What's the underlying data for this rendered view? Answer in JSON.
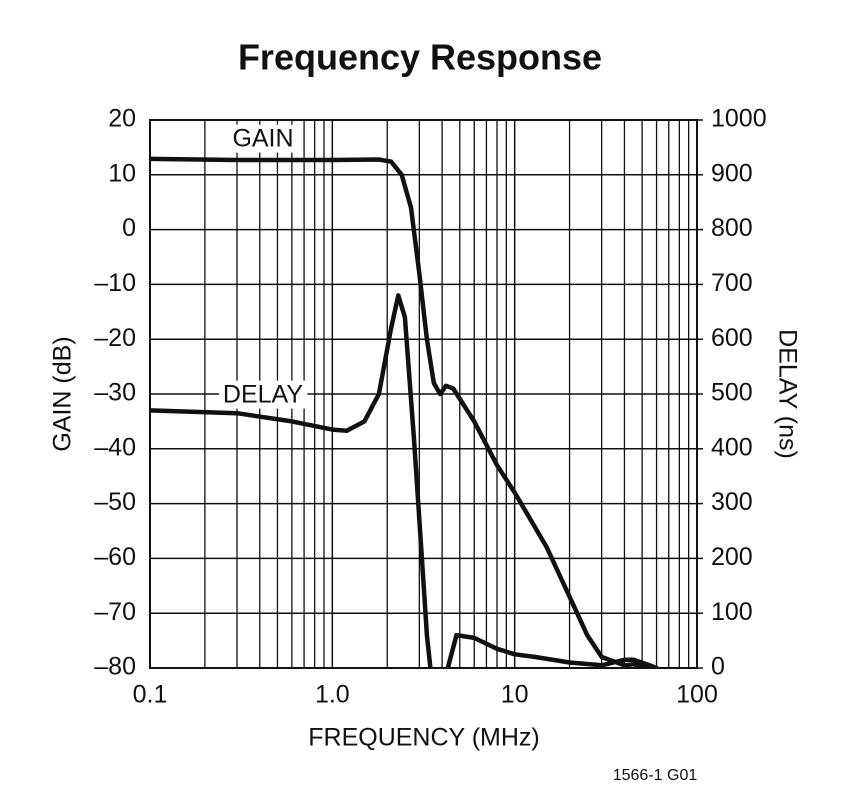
{
  "chart_data": {
    "type": "line",
    "title": "Frequency Response",
    "xlabel": "FREQUENCY (MHz)",
    "ylabel": "GAIN (dB)",
    "y2label": "DELAY (ns)",
    "note": "1566-1 G01",
    "xscale": "log",
    "grid": true,
    "color": "#111111",
    "xlim": [
      0.1,
      100
    ],
    "xticks": [
      0.1,
      {
        "value": 1,
        "label": "1.0"
      },
      10,
      100
    ],
    "ylim": [
      -80,
      20
    ],
    "yticks": [
      {
        "value": -80,
        "label": "–80"
      },
      {
        "value": -70,
        "label": "–70"
      },
      {
        "value": -60,
        "label": "–60"
      },
      {
        "value": -50,
        "label": "–50"
      },
      {
        "value": -40,
        "label": "–40"
      },
      {
        "value": -30,
        "label": "–30"
      },
      {
        "value": -20,
        "label": "–20"
      },
      {
        "value": -10,
        "label": "–10"
      },
      0,
      10,
      20
    ],
    "y2lim": [
      0,
      1000
    ],
    "y2ticks": [
      0,
      100,
      200,
      300,
      400,
      500,
      600,
      700,
      800,
      900,
      1000
    ],
    "series": [
      {
        "name": "GAIN",
        "color": "#111111",
        "x": [
          0.1,
          0.3,
          1,
          1.8,
          2.1,
          2.4,
          2.7,
          3.0,
          3.3,
          3.6,
          3.9,
          4.2,
          4.6,
          6,
          8,
          10,
          15,
          20,
          25,
          30,
          40,
          45,
          50,
          60
        ],
        "values": [
          12.9,
          12.7,
          12.7,
          12.8,
          12.4,
          10,
          4,
          -8,
          -20,
          -28,
          -30,
          -28.5,
          -29,
          -35,
          -43,
          -48,
          -58,
          -67,
          -74,
          -78,
          -79.5,
          -79.3,
          -79.8,
          -80
        ]
      },
      {
        "name": "DELAY",
        "color": "#111111",
        "axis": "y2",
        "x": [
          0.1,
          0.3,
          0.6,
          1.0,
          1.2,
          1.5,
          1.8,
          2.1,
          2.3,
          2.5,
          2.8,
          3.1,
          3.3,
          3.45,
          4.0,
          4.3,
          4.8,
          6,
          8,
          10,
          13,
          20,
          30,
          40,
          45,
          55,
          60
        ],
        "values": [
          470,
          465,
          450,
          435,
          433,
          450,
          500,
          620,
          680,
          640,
          420,
          200,
          60,
          0,
          null,
          0,
          60,
          55,
          35,
          25,
          20,
          10,
          5,
          15,
          15,
          5,
          0
        ]
      }
    ]
  }
}
